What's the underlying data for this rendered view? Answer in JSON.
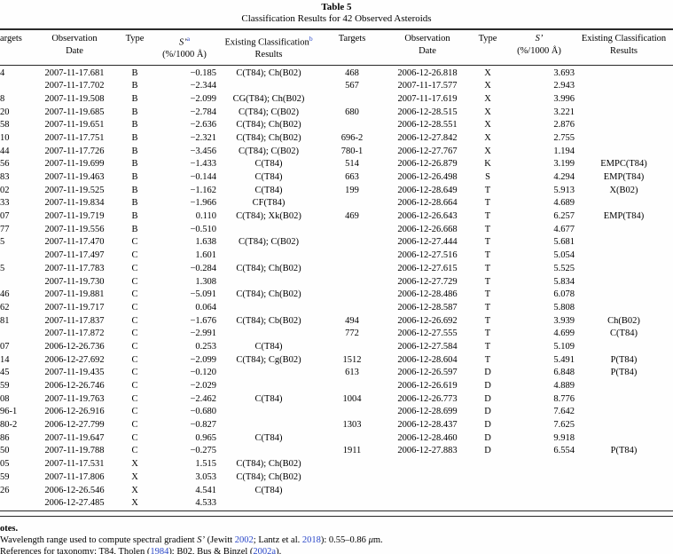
{
  "title": {
    "label": "Table 5",
    "subtitle": "Classification Results for 42 Observed Asteroids"
  },
  "colors": {
    "link": "#2946c8",
    "rule": "#2a2a2a",
    "text": "#000000"
  },
  "table": {
    "columns_left": [
      {
        "line1": "argets",
        "line2": ""
      },
      {
        "line1": "Observation",
        "line2": "Date"
      },
      {
        "line1": "Type",
        "line2": ""
      },
      {
        "line1": "S’",
        "italic": true,
        "sup": "a",
        "line2": "(%/1000 Å)"
      },
      {
        "line1": "Existing Classification",
        "sup": "b",
        "line2": "Results"
      }
    ],
    "columns_right": [
      {
        "line1": "Targets",
        "line2": ""
      },
      {
        "line1": "Observation",
        "line2": "Date"
      },
      {
        "line1": "Type",
        "line2": ""
      },
      {
        "line1": "S’",
        "italic": true,
        "line2": "(%/1000 Å)"
      },
      {
        "line1": "Existing Classification",
        "line2": "Results"
      }
    ],
    "rows": [
      {
        "l": [
          "4",
          "2007-11-17.681",
          "B",
          "−0.185",
          "C(T84); Ch(B02)"
        ],
        "r": [
          "468",
          "2006-12-26.818",
          "X",
          "3.693",
          ""
        ]
      },
      {
        "l": [
          "",
          "2007-11-17.702",
          "B",
          "−2.344",
          ""
        ],
        "r": [
          "567",
          "2007-11-17.577",
          "X",
          "2.943",
          ""
        ]
      },
      {
        "l": [
          "8",
          "2007-11-19.508",
          "B",
          "−2.099",
          "CG(T84); Ch(B02)"
        ],
        "r": [
          "",
          "2007-11-17.619",
          "X",
          "3.996",
          ""
        ]
      },
      {
        "l": [
          "20",
          "2007-11-19.685",
          "B",
          "−2.784",
          "C(T84); C(B02)"
        ],
        "r": [
          "680",
          "2006-12-28.515",
          "X",
          "3.221",
          ""
        ]
      },
      {
        "l": [
          "58",
          "2007-11-19.651",
          "B",
          "−2.636",
          "C(T84); Ch(B02)"
        ],
        "r": [
          "",
          "2006-12-28.551",
          "X",
          "2.876",
          ""
        ]
      },
      {
        "l": [
          "10",
          "2007-11-17.751",
          "B",
          "−2.321",
          "C(T84); Ch(B02)"
        ],
        "r": [
          "696-2",
          "2006-12-27.842",
          "X",
          "2.755",
          ""
        ]
      },
      {
        "l": [
          "44",
          "2007-11-17.726",
          "B",
          "−3.456",
          "C(T84); C(B02)"
        ],
        "r": [
          "780-1",
          "2006-12-27.767",
          "X",
          "1.194",
          ""
        ]
      },
      {
        "l": [
          "56",
          "2007-11-19.699",
          "B",
          "−1.433",
          "C(T84)"
        ],
        "r": [
          "514",
          "2006-12-26.879",
          "K",
          "3.199",
          "EMPC(T84)"
        ]
      },
      {
        "l": [
          "83",
          "2007-11-19.463",
          "B",
          "−0.144",
          "C(T84)"
        ],
        "r": [
          "663",
          "2006-12-26.498",
          "S",
          "4.294",
          "EMP(T84)"
        ]
      },
      {
        "l": [
          "02",
          "2007-11-19.525",
          "B",
          "−1.162",
          "C(T84)"
        ],
        "r": [
          "199",
          "2006-12-28.649",
          "T",
          "5.913",
          "X(B02)"
        ]
      },
      {
        "l": [
          "33",
          "2007-11-19.834",
          "B",
          "−1.966",
          "CF(T84)"
        ],
        "r": [
          "",
          "2006-12-28.664",
          "T",
          "4.689",
          ""
        ]
      },
      {
        "l": [
          "07",
          "2007-11-19.719",
          "B",
          "0.110",
          "C(T84); Xk(B02)"
        ],
        "r": [
          "469",
          "2006-12-26.643",
          "T",
          "6.257",
          "EMP(T84)"
        ]
      },
      {
        "l": [
          "77",
          "2007-11-19.556",
          "B",
          "−0.510",
          ""
        ],
        "r": [
          "",
          "2006-12-26.668",
          "T",
          "4.677",
          ""
        ]
      },
      {
        "l": [
          "5",
          "2007-11-17.470",
          "C",
          "1.638",
          "C(T84); C(B02)"
        ],
        "r": [
          "",
          "2006-12-27.444",
          "T",
          "5.681",
          ""
        ]
      },
      {
        "l": [
          "",
          "2007-11-17.497",
          "C",
          "1.601",
          ""
        ],
        "r": [
          "",
          "2006-12-27.516",
          "T",
          "5.054",
          ""
        ]
      },
      {
        "l": [
          "5",
          "2007-11-17.783",
          "C",
          "−0.284",
          "C(T84); Ch(B02)"
        ],
        "r": [
          "",
          "2006-12-27.615",
          "T",
          "5.525",
          ""
        ]
      },
      {
        "l": [
          "",
          "2007-11-19.730",
          "C",
          "1.308",
          ""
        ],
        "r": [
          "",
          "2006-12-27.729",
          "T",
          "5.834",
          ""
        ]
      },
      {
        "l": [
          "46",
          "2007-11-19.881",
          "C",
          "−5.091",
          "C(T84); Ch(B02)"
        ],
        "r": [
          "",
          "2006-12-28.486",
          "T",
          "6.078",
          ""
        ]
      },
      {
        "l": [
          "62",
          "2007-11-19.717",
          "C",
          "0.064",
          ""
        ],
        "r": [
          "",
          "2006-12-28.587",
          "T",
          "5.808",
          ""
        ]
      },
      {
        "l": [
          "81",
          "2007-11-17.837",
          "C",
          "−1.676",
          "C(T84); Cb(B02)"
        ],
        "r": [
          "494",
          "2006-12-26.692",
          "T",
          "3.939",
          "Ch(B02)"
        ]
      },
      {
        "l": [
          "",
          "2007-11-17.872",
          "C",
          "−2.991",
          ""
        ],
        "r": [
          "772",
          "2006-12-27.555",
          "T",
          "4.699",
          "C(T84)"
        ]
      },
      {
        "l": [
          "07",
          "2006-12-26.736",
          "C",
          "0.253",
          "C(T84)"
        ],
        "r": [
          "",
          "2006-12-27.584",
          "T",
          "5.109",
          ""
        ]
      },
      {
        "l": [
          "14",
          "2006-12-27.692",
          "C",
          "−2.099",
          "C(T84); Cg(B02)"
        ],
        "r": [
          "1512",
          "2006-12-28.604",
          "T",
          "5.491",
          "P(T84)"
        ]
      },
      {
        "l": [
          "45",
          "2007-11-19.435",
          "C",
          "−0.120",
          ""
        ],
        "r": [
          "613",
          "2006-12-26.597",
          "D",
          "6.848",
          "P(T84)"
        ]
      },
      {
        "l": [
          "59",
          "2006-12-26.746",
          "C",
          "−2.029",
          ""
        ],
        "r": [
          "",
          "2006-12-26.619",
          "D",
          "4.889",
          ""
        ]
      },
      {
        "l": [
          "08",
          "2007-11-19.763",
          "C",
          "−2.462",
          "C(T84)"
        ],
        "r": [
          "1004",
          "2006-12-26.773",
          "D",
          "8.776",
          ""
        ]
      },
      {
        "l": [
          "96-1",
          "2006-12-26.916",
          "C",
          "−0.680",
          ""
        ],
        "r": [
          "",
          "2006-12-28.699",
          "D",
          "7.642",
          ""
        ]
      },
      {
        "l": [
          "80-2",
          "2006-12-27.799",
          "C",
          "−0.827",
          ""
        ],
        "r": [
          "1303",
          "2006-12-28.437",
          "D",
          "7.625",
          ""
        ]
      },
      {
        "l": [
          "86",
          "2007-11-19.647",
          "C",
          "0.965",
          "C(T84)"
        ],
        "r": [
          "",
          "2006-12-28.460",
          "D",
          "9.918",
          ""
        ]
      },
      {
        "l": [
          "50",
          "2007-11-19.788",
          "C",
          "−0.275",
          ""
        ],
        "r": [
          "1911",
          "2006-12-27.883",
          "D",
          "6.554",
          "P(T84)"
        ]
      },
      {
        "l": [
          "05",
          "2007-11-17.531",
          "X",
          "1.515",
          "C(T84); Ch(B02)"
        ],
        "r": [
          "",
          "",
          "",
          "",
          ""
        ]
      },
      {
        "l": [
          "59",
          "2007-11-17.806",
          "X",
          "3.053",
          "C(T84); Ch(B02)"
        ],
        "r": [
          "",
          "",
          "",
          "",
          ""
        ]
      },
      {
        "l": [
          "26",
          "2006-12-26.546",
          "X",
          "4.541",
          "C(T84)"
        ],
        "r": [
          "",
          "",
          "",
          "",
          ""
        ]
      },
      {
        "l": [
          "",
          "2006-12-27.485",
          "X",
          "4.533",
          ""
        ],
        "r": [
          "",
          "",
          "",
          "",
          ""
        ]
      }
    ]
  },
  "notes": {
    "heading": "otes.",
    "lines": [
      {
        "segments": [
          {
            "t": "Wavelength range used to compute spectral gradient "
          },
          {
            "t": "S’",
            "i": true
          },
          {
            "t": " (Jewitt "
          },
          {
            "t": "2002",
            "link": true
          },
          {
            "t": "; Lantz et al. "
          },
          {
            "t": "2018",
            "link": true
          },
          {
            "t": "): 0.55–0.86 "
          },
          {
            "t": "μ",
            "i": true
          },
          {
            "t": "m."
          }
        ]
      },
      {
        "segments": [
          {
            "t": "References for taxonomy: T84, Tholen ("
          },
          {
            "t": "1984",
            "link": true
          },
          {
            "t": "); B02, Bus & Binzel ("
          },
          {
            "t": "2002a",
            "link": true
          },
          {
            "t": ")."
          }
        ]
      }
    ]
  }
}
